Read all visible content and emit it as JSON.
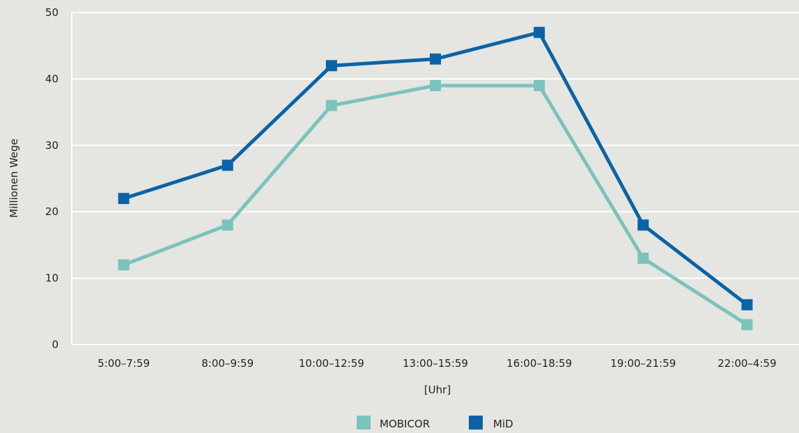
{
  "chart_data": {
    "type": "line",
    "categories": [
      "5:00–7:59",
      "8:00–9:59",
      "10:00–12:59",
      "13:00–15:59",
      "16:00–18:59",
      "19:00–21:59",
      "22:00–4:59"
    ],
    "series": [
      {
        "name": "MOBICOR",
        "values": [
          12,
          18,
          36,
          39,
          39,
          13,
          3
        ],
        "color": "#7bc3bd"
      },
      {
        "name": "MiD",
        "values": [
          22,
          27,
          42,
          43,
          47,
          18,
          6
        ],
        "color": "#0a63a6"
      }
    ],
    "title": "",
    "xlabel": "[Uhr]",
    "ylabel": "Millionen Wege",
    "ylim": [
      0,
      50
    ],
    "yticks": [
      0,
      10,
      20,
      30,
      40,
      50
    ],
    "grid": true,
    "legend": "bottom-center",
    "colors": {
      "background": "#e5e5e1",
      "grid": "#ffffff"
    }
  }
}
